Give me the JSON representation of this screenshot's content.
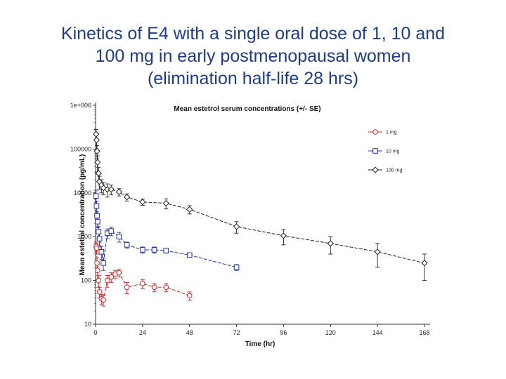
{
  "slide": {
    "title_lines": [
      "Kinetics of E4 with a single oral dose of 1, 10 and",
      "100 mg in early postmenopausal women",
      "(elimination half-life 28 hrs)"
    ]
  },
  "chart_data": {
    "type": "line",
    "title": "Mean estetrol serum concentrations (+/- SE)",
    "xlabel": "Time (hr)",
    "ylabel": "Mean estetrol concentration (pg/mL)",
    "x_scale": "linear",
    "y_scale": "log",
    "xlim": [
      0,
      168
    ],
    "ylim": [
      10,
      1000000
    ],
    "x_ticks": [
      0,
      24,
      48,
      72,
      96,
      120,
      144,
      168
    ],
    "x_tick_labels": [
      "0",
      "24",
      "48",
      "72",
      "96",
      "120",
      "144",
      "168"
    ],
    "y_ticks": [
      10,
      100,
      1000,
      10000,
      100000,
      1000000
    ],
    "y_tick_labels": [
      "10",
      "100",
      "1000",
      "10000",
      "100000",
      "1e+006"
    ],
    "grid": false,
    "legend_position": "top-right",
    "series": [
      {
        "name": "1 mg",
        "color": "#d62728",
        "marker": "circle",
        "x": [
          0.25,
          0.5,
          0.75,
          1,
          1.5,
          2,
          3,
          4,
          6,
          8,
          10,
          12,
          16,
          24,
          30,
          36,
          48
        ],
        "y": [
          600,
          550,
          250,
          170,
          100,
          55,
          38,
          36,
          100,
          120,
          140,
          150,
          70,
          85,
          70,
          70,
          45
        ],
        "err": [
          150,
          150,
          80,
          60,
          30,
          15,
          10,
          10,
          30,
          30,
          30,
          30,
          20,
          20,
          15,
          15,
          10
        ]
      },
      {
        "name": "10 mg",
        "color": "#2233aa",
        "marker": "square",
        "x": [
          0.25,
          0.5,
          0.75,
          1,
          1.5,
          2,
          3,
          4,
          6,
          8,
          12,
          16,
          24,
          30,
          36,
          48,
          72
        ],
        "y": [
          8500,
          5000,
          3000,
          2200,
          1300,
          900,
          450,
          250,
          1200,
          1350,
          1000,
          650,
          500,
          500,
          480,
          380,
          200
        ],
        "err": [
          3000,
          1500,
          800,
          600,
          400,
          300,
          150,
          80,
          300,
          300,
          250,
          100,
          80,
          80,
          60,
          40,
          30
        ]
      },
      {
        "name": "100 mg",
        "color": "#222222",
        "marker": "diamond",
        "x": [
          0.25,
          0.5,
          0.75,
          1,
          1.5,
          2,
          3,
          4,
          6,
          8,
          12,
          16,
          24,
          36,
          48,
          72,
          96,
          120,
          144,
          168
        ],
        "y": [
          220000,
          160000,
          90000,
          50000,
          28000,
          18000,
          15000,
          13000,
          12000,
          12000,
          10500,
          8000,
          6200,
          5800,
          4200,
          1700,
          1050,
          700,
          450,
          250
        ],
        "err": [
          60000,
          60000,
          30000,
          20000,
          10000,
          6000,
          5000,
          4000,
          4000,
          3000,
          2000,
          1500,
          1000,
          1500,
          900,
          500,
          400,
          300,
          250,
          150
        ]
      }
    ]
  }
}
